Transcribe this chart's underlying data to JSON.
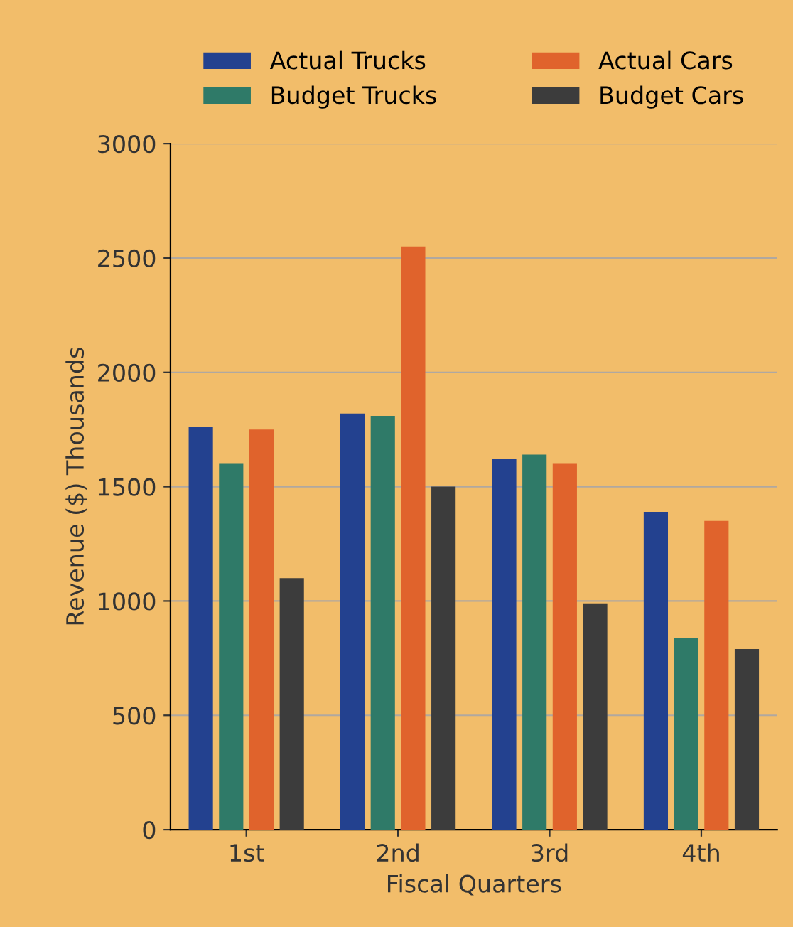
{
  "chart_data": {
    "type": "bar",
    "xlabel": "Fiscal Quarters",
    "ylabel": "Revenue ($) Thousands",
    "categories": [
      "1st",
      "2nd",
      "3rd",
      "4th"
    ],
    "series": [
      {
        "name": "Actual Trucks",
        "color": "#23418f",
        "values": [
          1760,
          1820,
          1620,
          1390
        ]
      },
      {
        "name": "Budget Trucks",
        "color": "#2f7a68",
        "values": [
          1600,
          1810,
          1640,
          840
        ]
      },
      {
        "name": "Actual Cars",
        "color": "#e0632c",
        "values": [
          1750,
          2550,
          1600,
          1350
        ]
      },
      {
        "name": "Budget Cars",
        "color": "#3c3c3c",
        "values": [
          1100,
          1500,
          990,
          790
        ]
      }
    ],
    "ylim": [
      0,
      3000
    ],
    "yticks": [
      0,
      500,
      1000,
      1500,
      2000,
      2500,
      3000
    ],
    "grid": "y",
    "legend": "top"
  }
}
